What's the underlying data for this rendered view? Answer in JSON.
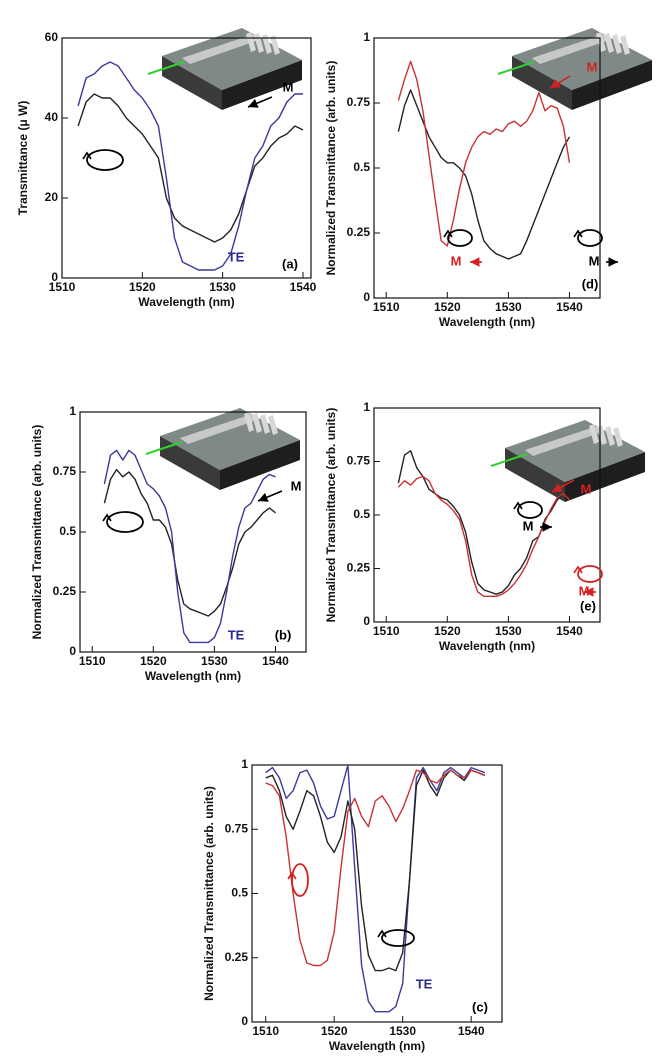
{
  "chart_data": [
    {
      "type": "line",
      "panel": "(a)",
      "xlabel": "Wavelength (nm)",
      "ylabel": "Transmittance (μ W)",
      "xlim": [
        1510,
        1541
      ],
      "xticks": [
        1510,
        1520,
        1530,
        1540
      ],
      "ylim": [
        0,
        60
      ],
      "yticks": [
        0,
        20,
        40,
        60
      ],
      "annotations": [
        {
          "text": "M",
          "color": "#000000"
        },
        {
          "text": "TE",
          "color": "#2b2b8f"
        },
        {
          "text": "(a)",
          "color": "#000000"
        }
      ],
      "x": [
        1512,
        1513,
        1514,
        1515,
        1516,
        1517,
        1518,
        1519,
        1520,
        1521,
        1522,
        1523,
        1524,
        1525,
        1526,
        1527,
        1528,
        1529,
        1530,
        1531,
        1532,
        1533,
        1534,
        1535,
        1536,
        1537,
        1538,
        1539,
        1540
      ],
      "series": [
        {
          "color": "#222222",
          "values": [
            38,
            44,
            46,
            45,
            45,
            43,
            40,
            38,
            36,
            33,
            30,
            20,
            15,
            13,
            12,
            11,
            10,
            9,
            10,
            12,
            16,
            22,
            28,
            30,
            33,
            35,
            36,
            38,
            37
          ]
        },
        {
          "color": "#3a3a9a",
          "values": [
            43,
            50,
            51,
            53,
            54,
            53,
            50,
            47,
            45,
            42,
            38,
            25,
            10,
            4,
            3,
            2,
            2,
            2,
            3,
            6,
            13,
            22,
            30,
            33,
            38,
            40,
            44,
            46,
            46
          ]
        }
      ]
    },
    {
      "type": "line",
      "panel": "(d)",
      "xlabel": "Wavelength (nm)",
      "ylabel": "Normalized Transmittance (arb. units)",
      "xlim": [
        1508,
        1545
      ],
      "xticks": [
        1510,
        1520,
        1530,
        1540
      ],
      "ylim": [
        0,
        1
      ],
      "yticks": [
        0,
        0.25,
        0.5,
        0.75,
        1
      ],
      "annotations": [
        {
          "text": "M",
          "color": "#d42020"
        },
        {
          "text": "M",
          "color": "#d42020"
        },
        {
          "text": "M",
          "color": "#000000"
        },
        {
          "text": "(d)",
          "color": "#000000"
        }
      ],
      "x": [
        1512,
        1513,
        1514,
        1515,
        1516,
        1517,
        1518,
        1519,
        1520,
        1521,
        1522,
        1523,
        1524,
        1525,
        1526,
        1527,
        1528,
        1529,
        1530,
        1531,
        1532,
        1533,
        1534,
        1535,
        1536,
        1537,
        1538,
        1539,
        1540
      ],
      "series": [
        {
          "color": "#222222",
          "values": [
            0.64,
            0.74,
            0.8,
            0.74,
            0.68,
            0.62,
            0.58,
            0.54,
            0.52,
            0.52,
            0.5,
            0.47,
            0.4,
            0.3,
            0.22,
            0.19,
            0.17,
            0.16,
            0.15,
            0.16,
            0.17,
            0.22,
            0.28,
            0.34,
            0.4,
            0.46,
            0.52,
            0.58,
            0.62
          ]
        },
        {
          "color": "#c83232",
          "values": [
            0.76,
            0.84,
            0.91,
            0.84,
            0.72,
            0.55,
            0.38,
            0.22,
            0.2,
            0.3,
            0.42,
            0.52,
            0.58,
            0.62,
            0.64,
            0.63,
            0.65,
            0.64,
            0.67,
            0.68,
            0.66,
            0.68,
            0.72,
            0.79,
            0.72,
            0.74,
            0.73,
            0.66,
            0.52
          ]
        }
      ]
    },
    {
      "type": "line",
      "panel": "(b)",
      "xlabel": "Wavelength (nm)",
      "ylabel": "Normalized Transmittance (arb. units)",
      "xlim": [
        1508,
        1545
      ],
      "xticks": [
        1510,
        1520,
        1530,
        1540
      ],
      "ylim": [
        0,
        1
      ],
      "yticks": [
        0,
        0.25,
        0.5,
        0.75,
        1
      ],
      "annotations": [
        {
          "text": "M",
          "color": "#000000"
        },
        {
          "text": "TE",
          "color": "#2b2b8f"
        },
        {
          "text": "(b)",
          "color": "#000000"
        }
      ],
      "x": [
        1512,
        1513,
        1514,
        1515,
        1516,
        1517,
        1518,
        1519,
        1520,
        1521,
        1522,
        1523,
        1524,
        1525,
        1526,
        1527,
        1528,
        1529,
        1530,
        1531,
        1532,
        1533,
        1534,
        1535,
        1536,
        1537,
        1538,
        1539,
        1540
      ],
      "series": [
        {
          "color": "#222222",
          "values": [
            0.62,
            0.72,
            0.76,
            0.73,
            0.75,
            0.72,
            0.66,
            0.62,
            0.55,
            0.55,
            0.52,
            0.45,
            0.3,
            0.2,
            0.18,
            0.17,
            0.16,
            0.15,
            0.17,
            0.2,
            0.27,
            0.35,
            0.45,
            0.5,
            0.52,
            0.55,
            0.58,
            0.6,
            0.58
          ]
        },
        {
          "color": "#3a3a9a",
          "values": [
            0.7,
            0.82,
            0.84,
            0.8,
            0.84,
            0.82,
            0.76,
            0.7,
            0.68,
            0.65,
            0.6,
            0.5,
            0.25,
            0.08,
            0.04,
            0.04,
            0.04,
            0.04,
            0.06,
            0.12,
            0.25,
            0.4,
            0.52,
            0.6,
            0.62,
            0.67,
            0.72,
            0.74,
            0.73
          ]
        }
      ]
    },
    {
      "type": "line",
      "panel": "(e)",
      "xlabel": "Wavelength (nm)",
      "ylabel": "Normalized Transmittance (arb. units)",
      "xlim": [
        1508,
        1545
      ],
      "xticks": [
        1510,
        1520,
        1530,
        1540
      ],
      "ylim": [
        0,
        1
      ],
      "yticks": [
        0,
        0.25,
        0.5,
        0.75,
        1
      ],
      "annotations": [
        {
          "text": "M",
          "color": "#d42020"
        },
        {
          "text": "M",
          "color": "#000000"
        },
        {
          "text": "M",
          "color": "#d42020"
        },
        {
          "text": "(e)",
          "color": "#000000"
        }
      ],
      "x": [
        1512,
        1513,
        1514,
        1515,
        1516,
        1517,
        1518,
        1519,
        1520,
        1521,
        1522,
        1523,
        1524,
        1525,
        1526,
        1527,
        1528,
        1529,
        1530,
        1531,
        1532,
        1533,
        1534,
        1535,
        1536,
        1537,
        1538,
        1539,
        1540
      ],
      "series": [
        {
          "color": "#222222",
          "values": [
            0.65,
            0.78,
            0.8,
            0.72,
            0.68,
            0.62,
            0.6,
            0.58,
            0.57,
            0.54,
            0.5,
            0.42,
            0.28,
            0.18,
            0.15,
            0.14,
            0.13,
            0.14,
            0.17,
            0.22,
            0.25,
            0.3,
            0.38,
            0.4,
            0.48,
            0.52,
            0.57,
            0.6,
            0.58
          ]
        },
        {
          "color": "#c83232",
          "values": [
            0.63,
            0.66,
            0.64,
            0.67,
            0.68,
            0.66,
            0.6,
            0.57,
            0.55,
            0.52,
            0.48,
            0.38,
            0.22,
            0.14,
            0.12,
            0.12,
            0.12,
            0.13,
            0.15,
            0.18,
            0.22,
            0.27,
            0.34,
            0.4,
            0.47,
            0.53,
            0.58,
            0.6,
            0.57
          ]
        }
      ]
    },
    {
      "type": "line",
      "panel": "(c)",
      "xlabel": "Wavelength (nm)",
      "ylabel": "Normalized Transmittance (arb. units)",
      "xlim": [
        1508,
        1544.5
      ],
      "xticks": [
        1510,
        1520,
        1530,
        1540
      ],
      "ylim": [
        0,
        1
      ],
      "yticks": [
        0,
        0.25,
        0.5,
        0.75,
        1
      ],
      "annotations": [
        {
          "text": "TE",
          "color": "#2b2b8f"
        },
        {
          "text": "(c)",
          "color": "#000000"
        }
      ],
      "x": [
        1510,
        1511,
        1512,
        1513,
        1514,
        1515,
        1516,
        1517,
        1518,
        1519,
        1520,
        1521,
        1522,
        1523,
        1524,
        1525,
        1526,
        1527,
        1528,
        1529,
        1530,
        1531,
        1532,
        1533,
        1534,
        1535,
        1536,
        1537,
        1538,
        1539,
        1540,
        1541,
        1542
      ],
      "series": [
        {
          "color": "#3a3aa0",
          "values": [
            0.97,
            0.99,
            0.95,
            0.87,
            0.9,
            0.97,
            0.98,
            0.93,
            0.84,
            0.79,
            0.8,
            0.9,
            1,
            0.6,
            0.22,
            0.08,
            0.04,
            0.04,
            0.04,
            0.06,
            0.15,
            0.55,
            0.95,
            0.99,
            0.94,
            0.9,
            0.97,
            0.99,
            0.97,
            0.95,
            0.99,
            0.98,
            0.97
          ]
        },
        {
          "color": "#222222",
          "values": [
            0.95,
            0.96,
            0.9,
            0.8,
            0.75,
            0.82,
            0.9,
            0.88,
            0.8,
            0.7,
            0.66,
            0.72,
            0.86,
            0.75,
            0.45,
            0.26,
            0.2,
            0.2,
            0.21,
            0.2,
            0.27,
            0.55,
            0.92,
            0.98,
            0.92,
            0.88,
            0.95,
            0.98,
            0.96,
            0.94,
            0.98,
            0.97,
            0.96
          ]
        },
        {
          "color": "#c83232",
          "values": [
            0.93,
            0.92,
            0.88,
            0.72,
            0.5,
            0.32,
            0.23,
            0.22,
            0.22,
            0.24,
            0.35,
            0.6,
            0.82,
            0.87,
            0.8,
            0.76,
            0.86,
            0.88,
            0.84,
            0.78,
            0.83,
            0.9,
            0.98,
            0.97,
            0.94,
            0.93,
            0.96,
            0.98,
            0.96,
            0.95,
            0.98,
            0.97,
            0.96
          ]
        }
      ]
    }
  ]
}
